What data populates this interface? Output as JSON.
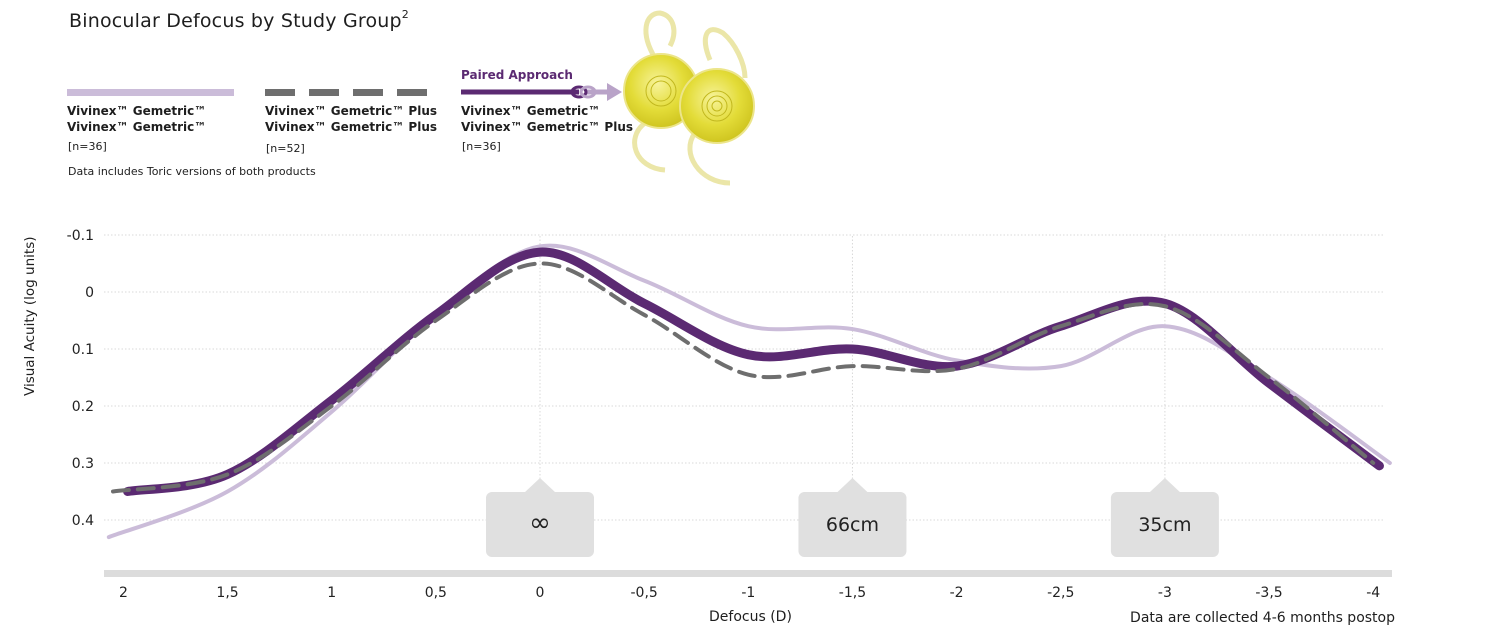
{
  "title": "Binocular Defocus by Study Group",
  "title_sup": "2",
  "legend": [
    {
      "line1": "Vivinex™ Gemetric™",
      "line2": "Vivinex™ Gemetric™",
      "n": "[n=36]",
      "color": "#cbbcd9",
      "style": "solid"
    },
    {
      "line1": "Vivinex™ Gemetric™ Plus",
      "line2": "Vivinex™ Gemetric™ Plus",
      "n": "[n=52]",
      "color": "#6e6e6e",
      "style": "dashed"
    },
    {
      "heading": "Paired Approach",
      "line1": "Vivinex™ Gemetric™",
      "line2": "Vivinex™ Gemetric™ Plus",
      "n": "[n=36]",
      "color": "#5b2a72",
      "style": "solid-thick"
    }
  ],
  "note": "Data includes Toric versions of both products",
  "footnote": "Data are collected 4-6 months postop",
  "chart_data": {
    "type": "line",
    "xlabel": "Defocus (D)",
    "ylabel": "Visual Acuity (log units)",
    "x": [
      2,
      1.5,
      1,
      0.5,
      0,
      -0.5,
      -1,
      -1.5,
      -2,
      -2.5,
      -3,
      -3.5,
      -4
    ],
    "xticks": [
      "2",
      "1,5",
      "1",
      "0,5",
      "0",
      "-0,5",
      "-1",
      "-1,5",
      "-2",
      "-2,5",
      "-3",
      "-3,5",
      "-4"
    ],
    "yticks": [
      "-0.1",
      "0",
      "0.1",
      "0.2",
      "0.3",
      "0.4"
    ],
    "yticks_values": [
      -0.1,
      0,
      0.1,
      0.2,
      0.3,
      0.4
    ],
    "ylim": [
      -0.1,
      0.4
    ],
    "y_inverted": true,
    "grid": true,
    "series": [
      {
        "name": "Vivinex™ Gemetric™ / Vivinex™ Gemetric™",
        "color": "#cbbcd9",
        "style": "solid",
        "points": [
          [
            2.07,
            0.43
          ],
          [
            1.5,
            0.35
          ],
          [
            1,
            0.21
          ],
          [
            0.5,
            0.04
          ],
          [
            0,
            -0.08
          ],
          [
            -0.5,
            -0.02
          ],
          [
            -1,
            0.06
          ],
          [
            -1.5,
            0.065
          ],
          [
            -2,
            0.12
          ],
          [
            -2.5,
            0.13
          ],
          [
            -3,
            0.06
          ],
          [
            -3.5,
            0.15
          ],
          [
            -4.08,
            0.3
          ]
        ]
      },
      {
        "name": "Vivinex™ Gemetric™ Plus / Vivinex™ Gemetric™ Plus",
        "color": "#6e6e6e",
        "style": "dashed",
        "points": [
          [
            2.05,
            0.35
          ],
          [
            1.5,
            0.32
          ],
          [
            1,
            0.2
          ],
          [
            0.5,
            0.05
          ],
          [
            0,
            -0.05
          ],
          [
            -0.5,
            0.04
          ],
          [
            -1,
            0.145
          ],
          [
            -1.5,
            0.13
          ],
          [
            -2,
            0.135
          ],
          [
            -2.5,
            0.06
          ],
          [
            -3,
            0.025
          ],
          [
            -3.5,
            0.15
          ],
          [
            -4,
            0.3
          ]
        ]
      },
      {
        "name": "Paired Approach",
        "color": "#5b2a72",
        "style": "thick",
        "points": [
          [
            1.98,
            0.35
          ],
          [
            1.5,
            0.32
          ],
          [
            1,
            0.19
          ],
          [
            0.5,
            0.04
          ],
          [
            0,
            -0.07
          ],
          [
            -0.5,
            0.02
          ],
          [
            -1,
            0.11
          ],
          [
            -1.5,
            0.1
          ],
          [
            -2,
            0.13
          ],
          [
            -2.5,
            0.06
          ],
          [
            -3,
            0.02
          ],
          [
            -3.5,
            0.16
          ],
          [
            -4.03,
            0.305
          ]
        ]
      }
    ],
    "annotations": [
      {
        "x": 0,
        "label": "∞"
      },
      {
        "x": -1.5,
        "label": "66cm"
      },
      {
        "x": -3,
        "label": "35cm"
      }
    ]
  }
}
